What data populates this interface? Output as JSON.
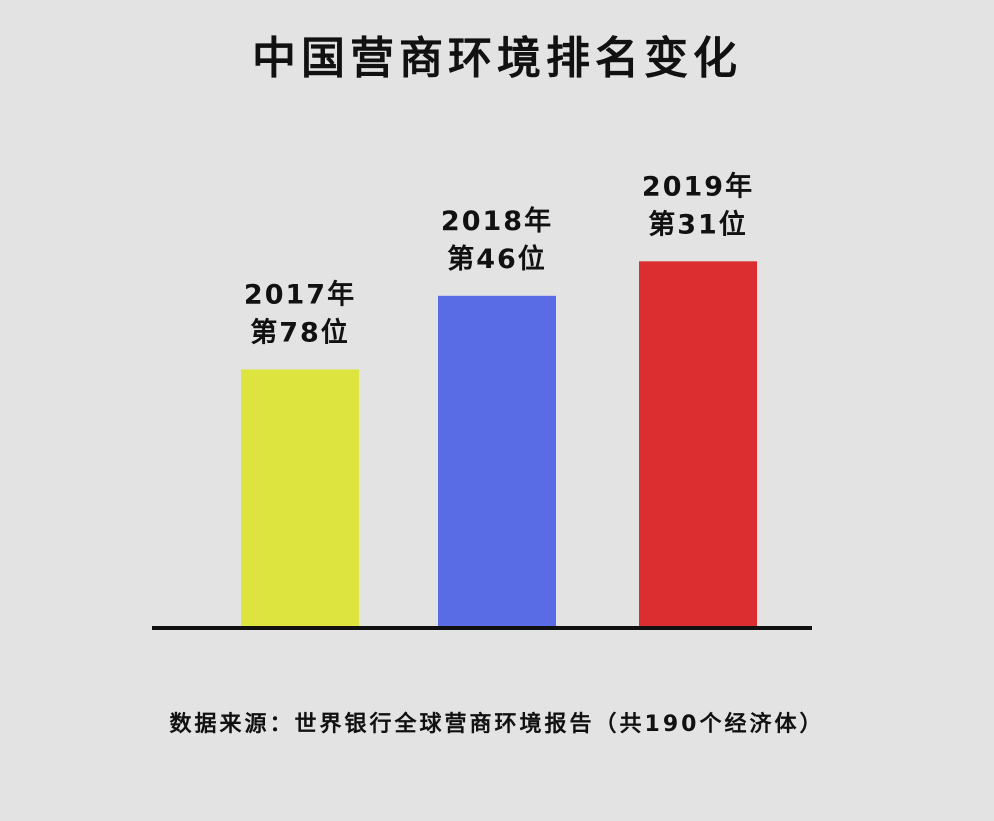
{
  "chart_data": {
    "type": "bar",
    "title": "中国营商环境排名变化",
    "categories": [
      "2017年",
      "2018年",
      "2019年"
    ],
    "values": [
      78,
      46,
      31
    ],
    "labels": [
      [
        "2017年",
        "第78位"
      ],
      [
        "2018年",
        "第46位"
      ],
      [
        "2019年",
        "第31位"
      ]
    ],
    "colors": [
      "#dde33f",
      "#5a6be6",
      "#dc2e30"
    ],
    "source": "数据来源：世界银行全球营商环境报告（共190个经济体）",
    "total_economies": 190,
    "xlabel": "",
    "ylabel": "",
    "grid": false
  }
}
